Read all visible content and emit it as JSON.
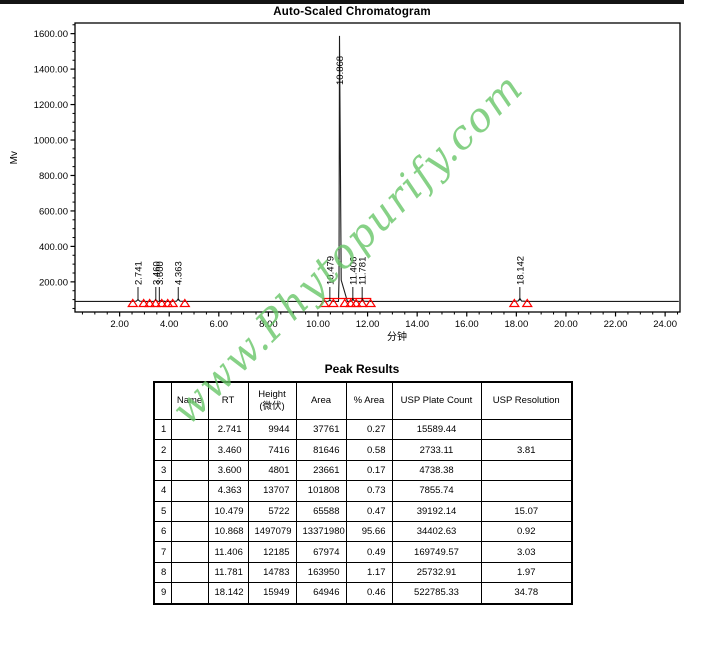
{
  "chart_data": {
    "type": "line",
    "title": "Auto-Scaled Chromatogram",
    "xlabel": "分钟",
    "ylabel": "Mv",
    "xlim": [
      0.2,
      24.6
    ],
    "ylim": [
      30,
      1660
    ],
    "grid": false,
    "x_tick_values": [
      2,
      4,
      6,
      8,
      10,
      12,
      14,
      16,
      18,
      20,
      22,
      24
    ],
    "x_tick_labels": [
      "2.00",
      "4.00",
      "6.00",
      "8.00",
      "10.00",
      "12.00",
      "14.00",
      "16.00",
      "18.00",
      "20.00",
      "22.00",
      "24.00"
    ],
    "x_minor_step": 0.5,
    "y_tick_values": [
      200,
      400,
      600,
      800,
      1000,
      1200,
      1400,
      1600
    ],
    "y_tick_labels": [
      "200.00",
      "400.00",
      "600.00",
      "800.00",
      "1000.00",
      "1200.00",
      "1400.00",
      "1600.00"
    ],
    "y_minor_step": 50,
    "baseline_mv": 90,
    "series_color": "#1c1c1c",
    "marker_color": "#ff0000",
    "peaks": [
      {
        "rt": "2.741",
        "height_uv": "9944",
        "area": "37761",
        "pct_area": "0.27",
        "usp_plate_count": "15589.44",
        "usp_resolution": ""
      },
      {
        "rt": "3.460",
        "height_uv": "7416",
        "area": "81646",
        "pct_area": "0.58",
        "usp_plate_count": "2733.11",
        "usp_resolution": "3.81"
      },
      {
        "rt": "3.600",
        "height_uv": "4801",
        "area": "23661",
        "pct_area": "0.17",
        "usp_plate_count": "4738.38",
        "usp_resolution": ""
      },
      {
        "rt": "4.363",
        "height_uv": "13707",
        "area": "101808",
        "pct_area": "0.73",
        "usp_plate_count": "7855.74",
        "usp_resolution": ""
      },
      {
        "rt": "10.479",
        "height_uv": "5722",
        "area": "65588",
        "pct_area": "0.47",
        "usp_plate_count": "39192.14",
        "usp_resolution": "15.07"
      },
      {
        "rt": "10.868",
        "height_uv": "1497079",
        "area": "13371980",
        "pct_area": "95.66",
        "usp_plate_count": "34402.63",
        "usp_resolution": "0.92"
      },
      {
        "rt": "11.406",
        "height_uv": "12185",
        "area": "67974",
        "pct_area": "0.49",
        "usp_plate_count": "169749.57",
        "usp_resolution": "3.03"
      },
      {
        "rt": "11.781",
        "height_uv": "14783",
        "area": "163950",
        "pct_area": "1.17",
        "usp_plate_count": "25732.91",
        "usp_resolution": "1.97"
      },
      {
        "rt": "18.142",
        "height_uv": "15949",
        "area": "64946",
        "pct_area": "0.46",
        "usp_plate_count": "522785.33",
        "usp_resolution": "34.78"
      }
    ],
    "integration": {
      "baseline_segment_min": [
        10.18,
        12.15
      ],
      "marker_positions_min": [
        2.53,
        2.97,
        3.21,
        3.45,
        3.7,
        3.94,
        4.14,
        4.63,
        10.25,
        10.62,
        11.08,
        11.32,
        11.54,
        11.78,
        12.12,
        17.92,
        18.44
      ]
    },
    "legend": null,
    "watermark": "www.Phytopurify.com"
  },
  "watermark": {
    "text": "www.Phytopurify.com",
    "color": "#68c668"
  },
  "table": {
    "title": "Peak Results",
    "headers": [
      "",
      "Name",
      "RT",
      "Height",
      "(微伏)",
      "Area",
      "% Area",
      "USP Plate Count",
      "USP Resolution"
    ]
  }
}
